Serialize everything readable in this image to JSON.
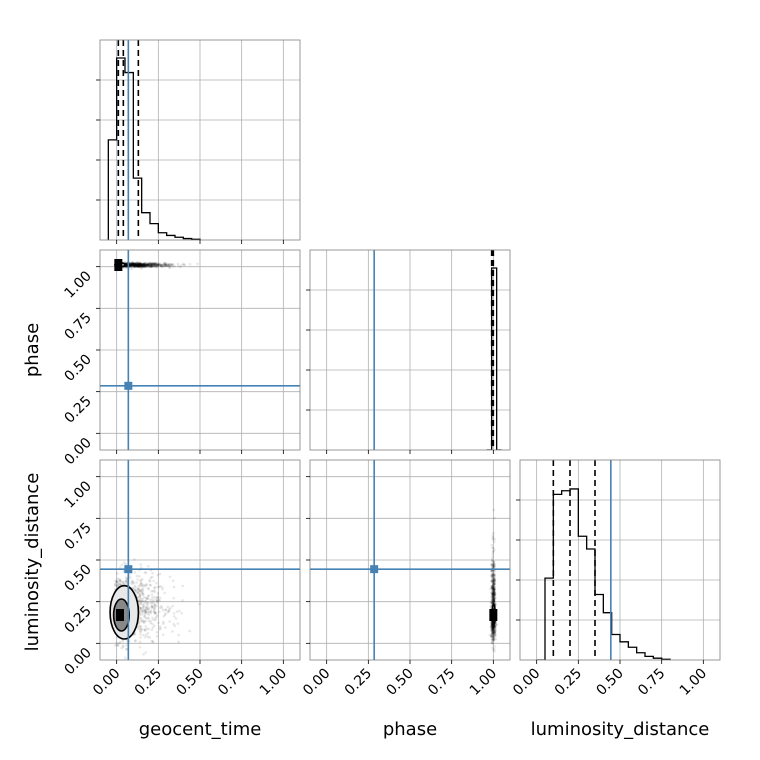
{
  "chart_data": {
    "type": "corner",
    "parameters": [
      "geocent_time",
      "phase",
      "luminosity_distance"
    ],
    "axis_labels": {
      "geocent_time": "geocent_time",
      "phase": "phase",
      "luminosity_distance": "luminosity_distance"
    },
    "range": [
      -0.1,
      1.1
    ],
    "tick_labels": [
      "0.00",
      "0.25",
      "0.50",
      "0.75",
      "1.00"
    ],
    "tick_values": [
      0.0,
      0.25,
      0.5,
      0.75,
      1.0
    ],
    "grid": true,
    "truths": {
      "geocent_time": 0.07,
      "phase": 0.285,
      "luminosity_distance": 0.445
    },
    "truth_color": "#4682b4",
    "line_color": "#000000",
    "quantiles": {
      "geocent_time": [
        0.01,
        0.04,
        0.13
      ],
      "phase": [
        0.99,
        0.995,
        1.0
      ],
      "luminosity_distance": [
        0.1,
        0.2,
        0.35
      ]
    },
    "histograms": {
      "geocent_time": {
        "bin_edges": [
          -0.05,
          0.0,
          0.05,
          0.1,
          0.15,
          0.2,
          0.25,
          0.3,
          0.35,
          0.4,
          0.45,
          0.5
        ],
        "counts": [
          0.55,
          1.0,
          0.92,
          0.34,
          0.15,
          0.09,
          0.04,
          0.025,
          0.015,
          0.008,
          0.004
        ]
      },
      "phase": {
        "bin_edges": [
          0.96,
          0.99,
          1.02,
          1.05
        ],
        "counts": [
          0.0,
          1.0,
          0.0
        ]
      },
      "luminosity_distance": {
        "bin_edges": [
          0.0,
          0.05,
          0.1,
          0.15,
          0.2,
          0.25,
          0.3,
          0.35,
          0.4,
          0.45,
          0.5,
          0.55,
          0.6,
          0.65,
          0.7,
          0.75,
          0.8
        ],
        "counts": [
          0.0,
          0.45,
          0.91,
          0.93,
          0.94,
          0.68,
          0.61,
          0.36,
          0.26,
          0.14,
          0.1,
          0.07,
          0.04,
          0.02,
          0.01,
          0.004
        ]
      }
    },
    "panel_2d": {
      "phase_vs_geocent_time": {
        "core": [
          0.01,
          1.01
        ],
        "spread_x": [
          0.0,
          0.62
        ],
        "spread_y": [
          0.96,
          1.03
        ]
      },
      "luminosity_distance_vs_geocent_time": {
        "core": [
          0.02,
          0.17
        ],
        "spread_x": [
          -0.05,
          0.7
        ],
        "spread_y": [
          0.05,
          0.7
        ]
      },
      "luminosity_distance_vs_phase": {
        "core": [
          1.0,
          0.17
        ],
        "spread_x": [
          0.98,
          1.02
        ],
        "spread_y": [
          0.05,
          0.85
        ]
      }
    }
  }
}
